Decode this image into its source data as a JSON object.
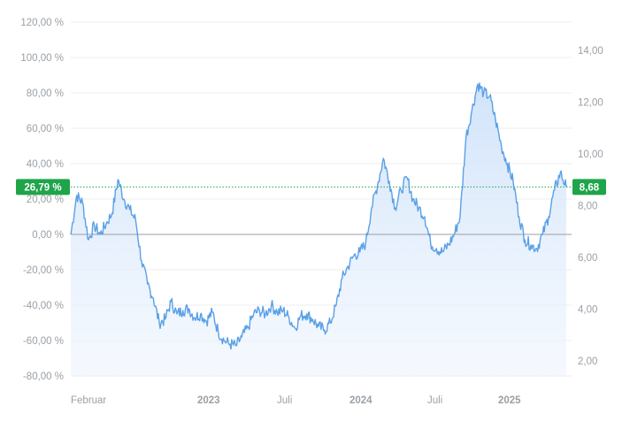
{
  "chart_data": {
    "type": "area",
    "series": [
      {
        "values_left_pct": [
          0.0,
          22.0,
          18.0,
          -3.0,
          5.0,
          0.0,
          6.0,
          12.0,
          31.0,
          20.0,
          14.0,
          8.0,
          -15.0,
          -28.0,
          -36.0,
          -50.0,
          -48.0,
          -38.0,
          -45.0,
          -43.0,
          -42.0,
          -47.0,
          -45.0,
          -49.0,
          -44.0,
          -55.0,
          -60.0,
          -62.0,
          -63.0,
          -58.0,
          -53.0,
          -45.0,
          -43.0,
          -45.0,
          -40.0,
          -44.0,
          -43.0,
          -47.0,
          -53.0,
          -46.0,
          -45.0,
          -48.0,
          -52.0,
          -54.0,
          -50.0,
          -40.0,
          -25.0,
          -18.0,
          -12.0,
          -10.0,
          -5.0,
          15.0,
          28.0,
          43.0,
          30.0,
          15.0,
          25.0,
          32.0,
          20.0,
          15.0,
          10.0,
          -5.0,
          -8.0,
          -10.0,
          -6.0,
          0.0,
          10.0,
          55.0,
          70.0,
          85.0,
          80.0,
          78.0,
          65.0,
          50.0,
          40.0,
          30.0,
          10.0,
          -3.0,
          -6.0,
          -8.0,
          0.0,
          10.0,
          25.0,
          35.0,
          26.79
        ]
      }
    ],
    "left_axis": {
      "ticks": [
        "120,00 %",
        "100,00 %",
        "80,00 %",
        "60,00 %",
        "40,00 %",
        "20,00 %",
        "0,00 %",
        "-20,00 %",
        "-40,00 %",
        "-60,00 %",
        "-80,00 %"
      ],
      "ylim": [
        -80,
        120
      ]
    },
    "right_axis": {
      "ticks": [
        "14,00",
        "12,00",
        "10,00",
        "8,00",
        "6,00",
        "4,00",
        "2,00"
      ],
      "ylim": [
        2,
        14
      ]
    },
    "x_axis": {
      "ticks": [
        {
          "label": "Februar",
          "bold": false
        },
        {
          "label": "2023",
          "bold": true
        },
        {
          "label": "Juli",
          "bold": false
        },
        {
          "label": "2024",
          "bold": true
        },
        {
          "label": "Juli",
          "bold": false
        },
        {
          "label": "2025",
          "bold": true
        }
      ]
    },
    "current": {
      "percent_label": "26,79 %",
      "price_label": "8,68",
      "percent": 26.79
    },
    "colors": {
      "line": "#5aa0e6",
      "fill": "#d7e7fb",
      "badge": "#1fa44a",
      "grid": "#ececec",
      "zero_line": "#9e9e9e",
      "tick_text": "#9aa0a6"
    },
    "grid": true
  }
}
